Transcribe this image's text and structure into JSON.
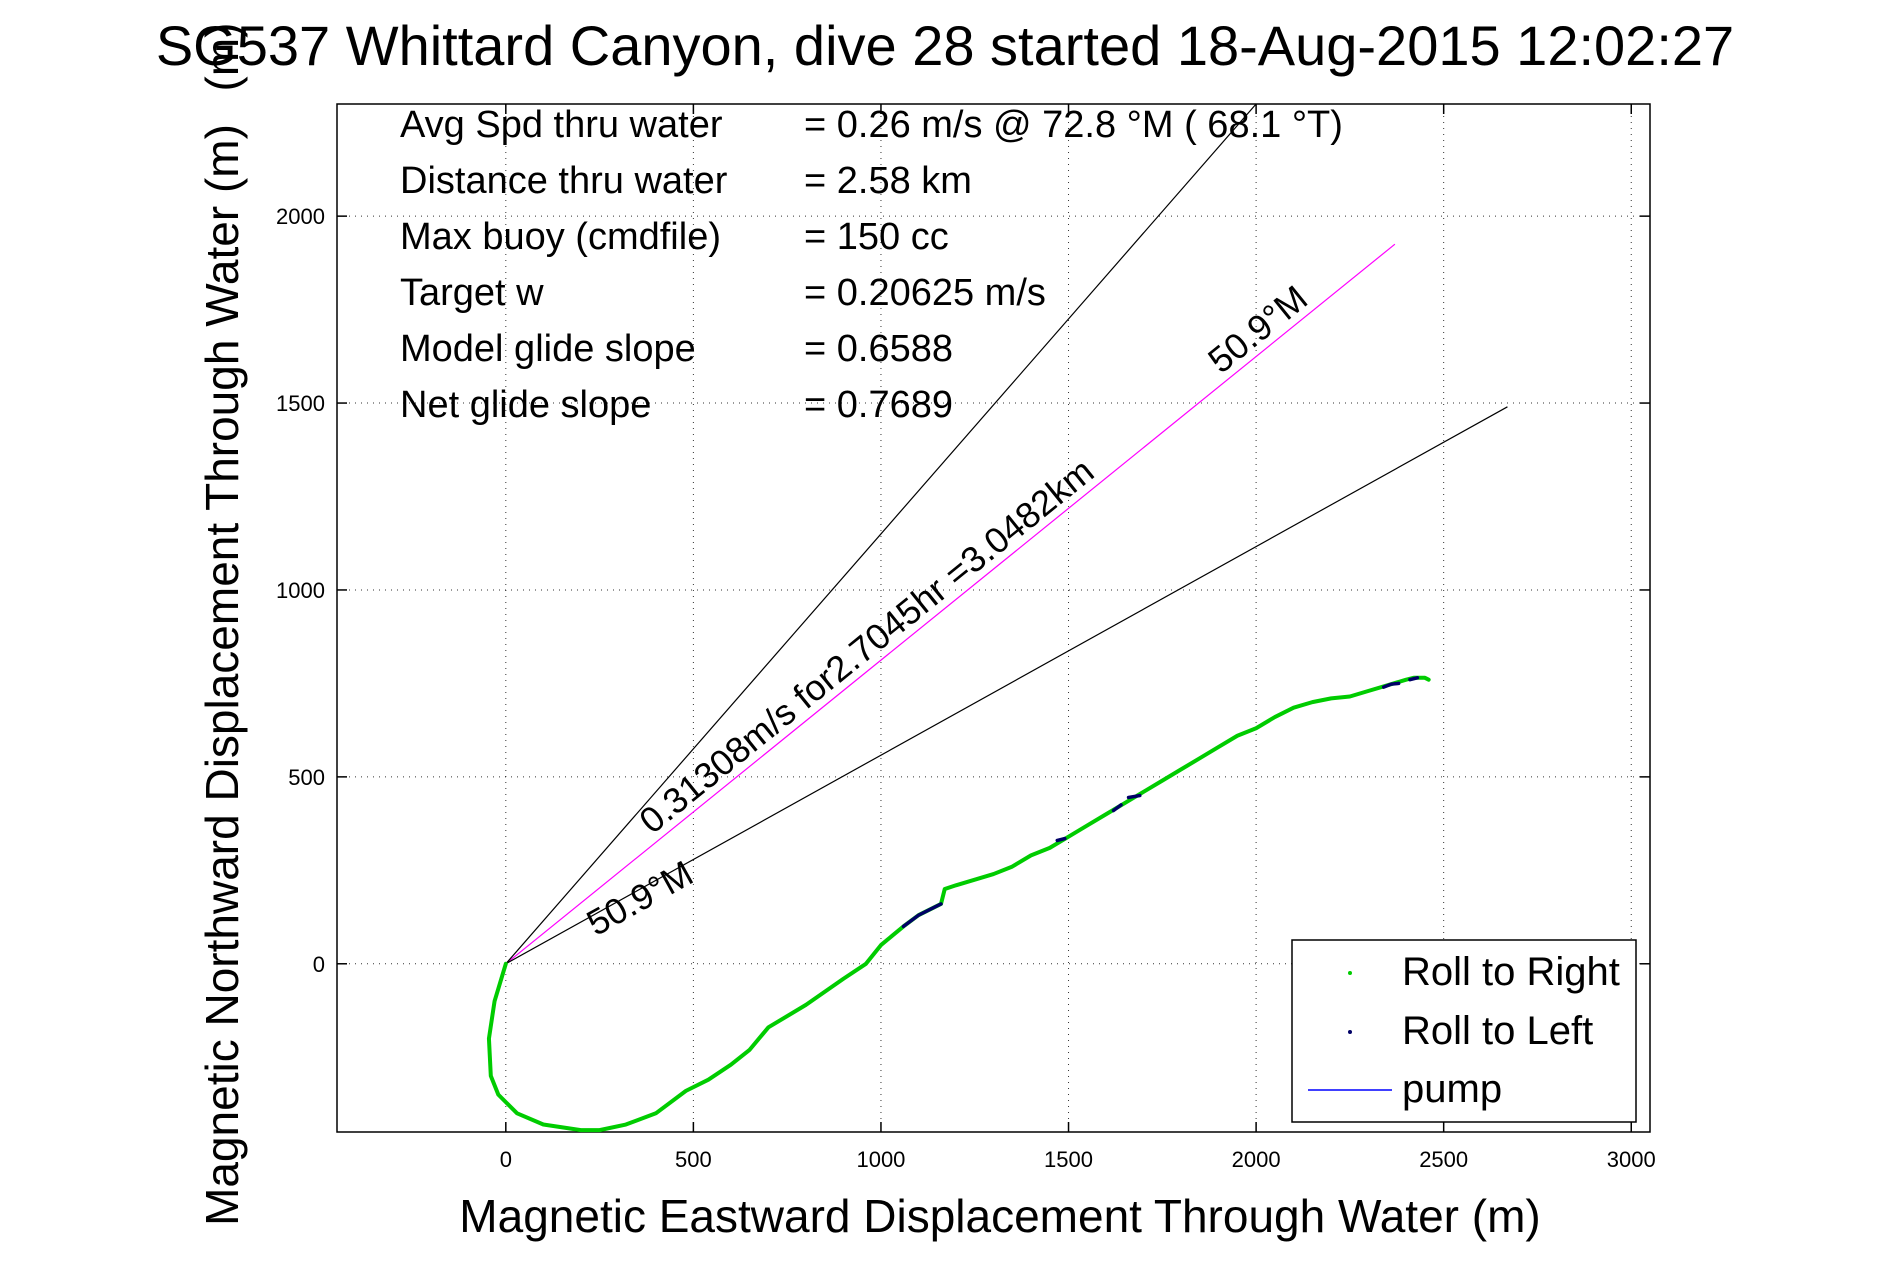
{
  "chart_data": {
    "type": "line",
    "title": "SG537 Whittard Canyon, dive 28 started 18-Aug-2015 12:02:27",
    "title_overlap_glyph": "(m)",
    "xlabel": "Magnetic Eastward Displacement Through Water (m)",
    "ylabel": "Magnetic Northward Displacement Through Water (m)",
    "xlim": [
      -450,
      3050
    ],
    "ylim": [
      -450,
      2300
    ],
    "xticks": [
      0,
      500,
      1000,
      1500,
      2000,
      2500,
      3000
    ],
    "yticks": [
      0,
      500,
      1000,
      1500,
      2000
    ],
    "xtick_labels": [
      "0",
      "500",
      "1000",
      "1500",
      "2000",
      "2500",
      "3000"
    ],
    "ytick_labels": [
      "0",
      "500",
      "1000",
      "1500",
      "2000"
    ],
    "grid": true,
    "legend_position": "bottom-right",
    "stats": [
      {
        "label": "Avg Spd thru water",
        "value": "=  0.26 m/s @  72.8 °M ( 68.1 °T)"
      },
      {
        "label": "Distance thru water",
        "value": "=  2.58 km"
      },
      {
        "label": "Max buoy (cmdfile)",
        "value": "= 150 cc"
      },
      {
        "label": "Target w",
        "value": "= 0.20625 m/s"
      },
      {
        "label": "Model glide slope",
        "value": "= 0.6588"
      },
      {
        "label": "Net glide slope",
        "value": "= 0.7689"
      }
    ],
    "annotations": {
      "heading_line_label": "0.31308m/s for2.7045hr =3.0482km",
      "upper_bound_label": "50.9°M",
      "lower_bound_label": "50.9°M"
    },
    "reference_lines": {
      "heading": {
        "from": [
          0,
          0
        ],
        "to": [
          2370,
          1925
        ],
        "color": "#ff00ff"
      },
      "upper": {
        "from": [
          0,
          0
        ],
        "to": [
          2000,
          2300
        ],
        "color": "#000000"
      },
      "lower": {
        "from": [
          0,
          0
        ],
        "to": [
          2670,
          1490
        ],
        "color": "#000000"
      }
    },
    "series": [
      {
        "name": "Roll to Right",
        "color": "#00cc00",
        "x": [
          0,
          -30,
          -45,
          -40,
          -20,
          30,
          100,
          200,
          250,
          320,
          400,
          480,
          540,
          600,
          650,
          700,
          800,
          900,
          960,
          1000,
          1060,
          1100,
          1160,
          1170,
          1200,
          1250,
          1300,
          1350,
          1400,
          1450,
          1500,
          1550,
          1600,
          1650,
          1700,
          1750,
          1800,
          1850,
          1900,
          1950,
          2000,
          2050,
          2100,
          2150,
          2200,
          2250,
          2300,
          2350,
          2400,
          2420,
          2450,
          2460
        ],
        "y": [
          0,
          -100,
          -200,
          -300,
          -350,
          -400,
          -430,
          -445,
          -445,
          -430,
          -400,
          -340,
          -310,
          -270,
          -230,
          -170,
          -110,
          -40,
          0,
          50,
          100,
          130,
          160,
          200,
          210,
          225,
          240,
          260,
          290,
          310,
          340,
          370,
          400,
          430,
          460,
          490,
          520,
          550,
          580,
          610,
          630,
          660,
          685,
          700,
          710,
          715,
          730,
          745,
          760,
          765,
          765,
          760
        ]
      },
      {
        "name": "Roll to Left",
        "color": "#000066",
        "segments": [
          {
            "x": [
              1060,
              1100,
              1160
            ],
            "y": [
              100,
              130,
              160
            ]
          },
          {
            "x": [
              1470,
              1490
            ],
            "y": [
              330,
              335
            ]
          },
          {
            "x": [
              1620,
              1640
            ],
            "y": [
              410,
              425
            ]
          },
          {
            "x": [
              1660,
              1690
            ],
            "y": [
              445,
              450
            ]
          },
          {
            "x": [
              2340,
              2360,
              2380
            ],
            "y": [
              740,
              748,
              750
            ]
          },
          {
            "x": [
              2410,
              2430
            ],
            "y": [
              760,
              765
            ]
          }
        ]
      },
      {
        "name": "pump",
        "color": "#0000ff",
        "x": [],
        "y": []
      }
    ]
  }
}
